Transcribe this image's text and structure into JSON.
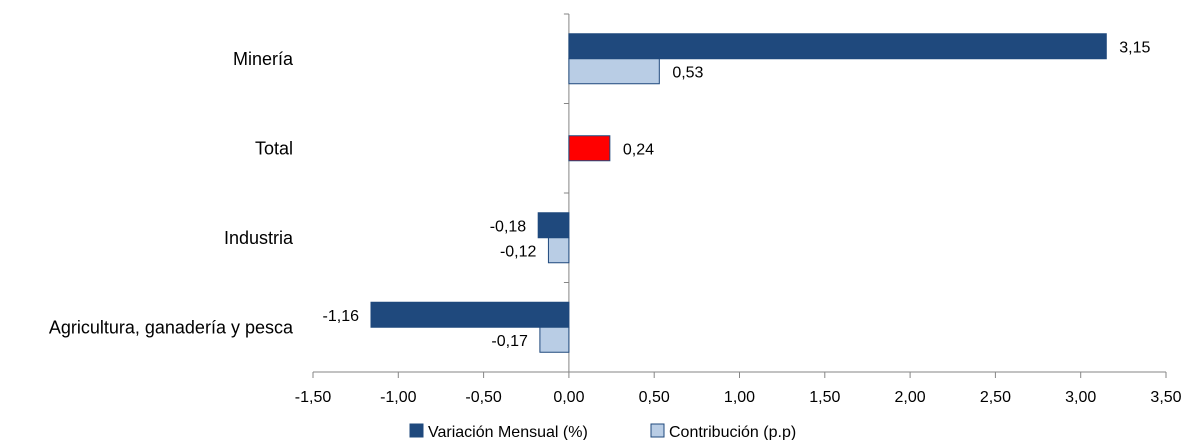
{
  "chart_data": {
    "type": "bar",
    "orientation": "horizontal",
    "categories": [
      "Minería",
      "Total",
      "Industria",
      "Agricultura, ganadería y pesca"
    ],
    "series": [
      {
        "name": "Variación Mensual (%)",
        "color": "#1F497D",
        "values": [
          3.15,
          0.24,
          -0.18,
          -1.16
        ],
        "labels": [
          "3,15",
          "0,24",
          "-0,18",
          "-1,16"
        ]
      },
      {
        "name": "Contribución (p.p)",
        "color": "#B9CDE5",
        "values": [
          0.53,
          null,
          -0.12,
          -0.17
        ],
        "labels": [
          "0,53",
          "",
          "-0,12",
          "-0,17"
        ]
      }
    ],
    "highlight": {
      "category": "Total",
      "color": "#FF0000"
    },
    "xlim": [
      -1.5,
      3.5
    ],
    "xticks": [
      -1.5,
      -1.0,
      -0.5,
      0.0,
      0.5,
      1.0,
      1.5,
      2.0,
      2.5,
      3.0,
      3.5
    ],
    "xtick_labels": [
      "-1,50",
      "-1,00",
      "-0,50",
      "0,00",
      "0,50",
      "1,00",
      "1,50",
      "2,00",
      "2,50",
      "3,00",
      "3,50"
    ],
    "grid": false,
    "legend_position": "bottom"
  }
}
